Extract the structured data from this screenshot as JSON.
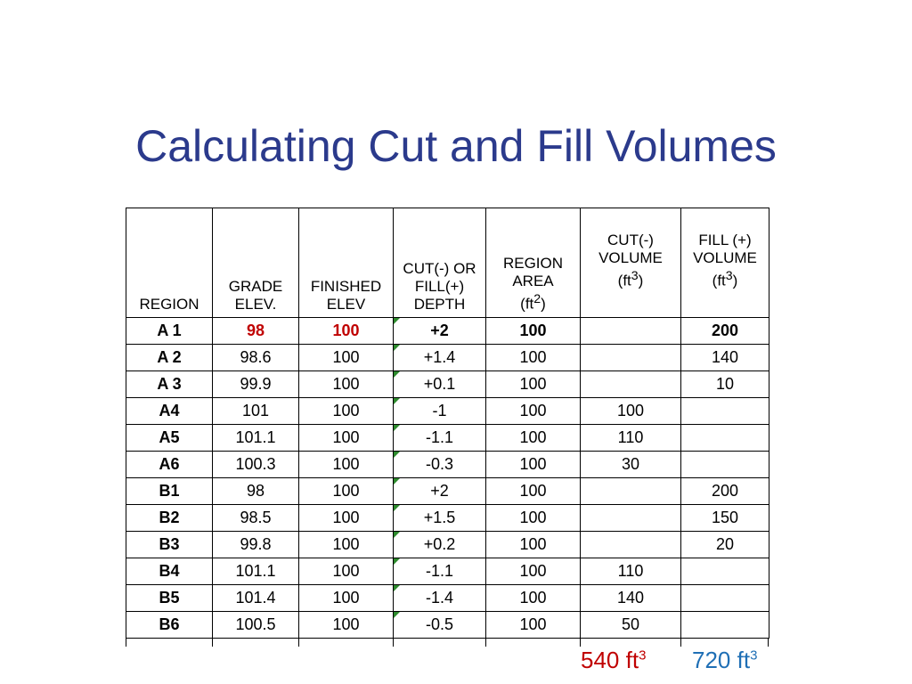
{
  "title": "Calculating Cut and Fill Volumes",
  "headers": {
    "region": "REGION",
    "grade": [
      "GRADE",
      "ELEV."
    ],
    "finished": [
      "FINISHED",
      "ELEV"
    ],
    "depth": [
      "CUT(-) OR",
      "FILL(+)",
      "DEPTH"
    ],
    "area": [
      "REGION",
      "AREA",
      "(ft",
      "2",
      ")"
    ],
    "cut": [
      "CUT(-)",
      "VOLUME",
      "(ft",
      "3",
      ")"
    ],
    "fill": [
      "FILL (+)",
      "VOLUME",
      "(ft",
      "3",
      ")"
    ]
  },
  "rows": [
    {
      "region": "A 1",
      "grade": "98",
      "finished": "100",
      "depth": "+2",
      "area": "100",
      "cut": "",
      "fill": "200"
    },
    {
      "region": "A 2",
      "grade": "98.6",
      "finished": "100",
      "depth": "+1.4",
      "area": "100",
      "cut": "",
      "fill": "140"
    },
    {
      "region": "A 3",
      "grade": "99.9",
      "finished": "100",
      "depth": "+0.1",
      "area": "100",
      "cut": "",
      "fill": "10"
    },
    {
      "region": "A4",
      "grade": "101",
      "finished": "100",
      "depth": "-1",
      "area": "100",
      "cut": "100",
      "fill": ""
    },
    {
      "region": "A5",
      "grade": "101.1",
      "finished": "100",
      "depth": "-1.1",
      "area": "100",
      "cut": "110",
      "fill": ""
    },
    {
      "region": "A6",
      "grade": "100.3",
      "finished": "100",
      "depth": "-0.3",
      "area": "100",
      "cut": "30",
      "fill": ""
    },
    {
      "region": "B1",
      "grade": "98",
      "finished": "100",
      "depth": "+2",
      "area": "100",
      "cut": "",
      "fill": "200"
    },
    {
      "region": "B2",
      "grade": "98.5",
      "finished": "100",
      "depth": "+1.5",
      "area": "100",
      "cut": "",
      "fill": "150"
    },
    {
      "region": "B3",
      "grade": "99.8",
      "finished": "100",
      "depth": "+0.2",
      "area": "100",
      "cut": "",
      "fill": "20"
    },
    {
      "region": "B4",
      "grade": "101.1",
      "finished": "100",
      "depth": "-1.1",
      "area": "100",
      "cut": "110",
      "fill": ""
    },
    {
      "region": "B5",
      "grade": "101.4",
      "finished": "100",
      "depth": "-1.4",
      "area": "100",
      "cut": "140",
      "fill": ""
    },
    {
      "region": "B6",
      "grade": "100.5",
      "finished": "100",
      "depth": "-0.5",
      "area": "100",
      "cut": "50",
      "fill": ""
    }
  ],
  "highlight_row_index": 0,
  "totals": {
    "cut_value": "540 ft",
    "cut_exp": "3",
    "fill_value": "720 ft",
    "fill_exp": "3"
  },
  "colors": {
    "title": "#2b3a8c",
    "highlight_red": "#c00000",
    "fill_total_blue": "#1f6fb5",
    "depth_marker_green": "#2e8b2e"
  }
}
